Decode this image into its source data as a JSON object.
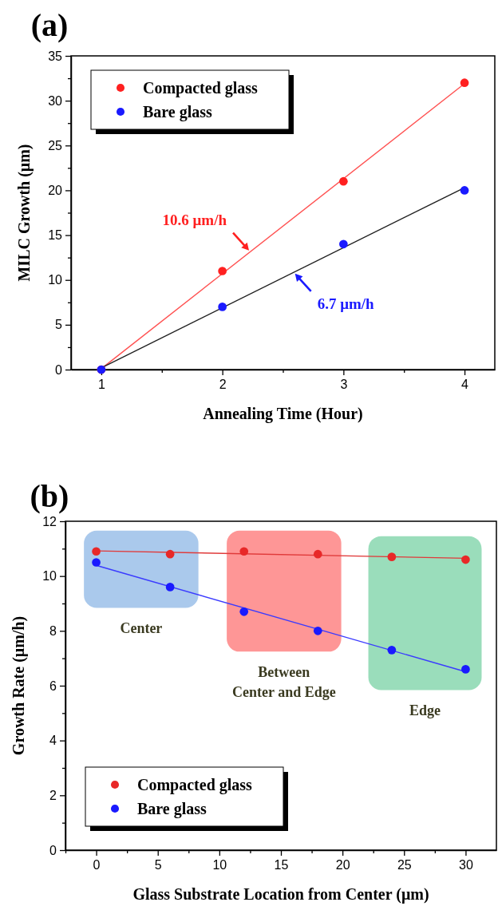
{
  "chart_data": [
    {
      "type": "scatter",
      "title": "(a)",
      "xlabel": "Annealing Time (Hour)",
      "ylabel": "MILC Growth (μm)",
      "x": [
        1,
        2,
        3,
        4
      ],
      "series": [
        {
          "name": "Compacted glass",
          "color": "#ff2020",
          "marker": "circle",
          "values": [
            0,
            11,
            21,
            32
          ]
        },
        {
          "name": "Bare glass",
          "color": "#1a1aff",
          "marker": "circle",
          "values": [
            0,
            7,
            14,
            20
          ]
        },
        {
          "type": "line",
          "color": "#ff5050",
          "marker": "none",
          "x": [
            1,
            4
          ],
          "values": [
            0.1,
            31.9
          ]
        },
        {
          "type": "line",
          "color": "#202020",
          "marker": "none",
          "x": [
            1,
            4
          ],
          "values": [
            0.2,
            20.3
          ]
        }
      ],
      "xlim": [
        0.75,
        4.25
      ],
      "xticks": [
        1,
        {
          "value": 1.5,
          "label": null
        },
        2,
        {
          "value": 2.5,
          "label": null
        },
        3,
        {
          "value": 3.5,
          "label": null
        },
        4
      ],
      "ylim": [
        0,
        35
      ],
      "yticks": [
        0,
        {
          "value": 2.5,
          "label": null
        },
        5,
        {
          "value": 7.5,
          "label": null
        },
        10,
        {
          "value": 12.5,
          "label": null
        },
        15,
        {
          "value": 17.5,
          "label": null
        },
        20,
        {
          "value": 22.5,
          "label": null
        },
        25,
        {
          "value": 27.5,
          "label": null
        },
        30,
        {
          "value": 32.5,
          "label": null
        },
        35
      ],
      "annotations": [
        {
          "text": "10.6 μm/h",
          "x": 2.22,
          "y": 13.3
        },
        {
          "text": "6.7 μm/h",
          "x": 2.6,
          "y": 10.7
        }
      ],
      "legend": "top left",
      "grid": false
    },
    {
      "type": "scatter",
      "title": "(b)",
      "xlabel": "Glass Substrate Location from Center (μm)",
      "ylabel": "Growth Rate (μm/h)",
      "x": [
        0,
        6,
        12,
        18,
        24,
        30
      ],
      "series": [
        {
          "name": "Compacted glass",
          "color": "#e82828",
          "marker": "circle",
          "values": [
            10.9,
            10.8,
            10.9,
            10.8,
            10.7,
            10.6
          ]
        },
        {
          "name": "Bare glass",
          "color": "#1a1aff",
          "marker": "circle",
          "values": [
            10.5,
            9.6,
            8.7,
            8.0,
            7.3,
            6.6
          ]
        },
        {
          "type": "line",
          "color": "#e03a3a",
          "marker": "none",
          "x": [
            0,
            30
          ],
          "values": [
            10.92,
            10.65
          ]
        },
        {
          "type": "line",
          "color": "#3a3aff",
          "marker": "none",
          "x": [
            0,
            30
          ],
          "values": [
            10.39,
            6.51
          ]
        }
      ],
      "xlim": [
        -2.5,
        32.5
      ],
      "xticks": [
        {
          "value": -2.5,
          "label": null
        },
        0,
        {
          "value": 2.5,
          "label": null
        },
        5,
        {
          "value": 7.5,
          "label": null
        },
        10,
        {
          "value": 12.5,
          "label": null
        },
        15,
        {
          "value": 17.5,
          "label": null
        },
        20,
        {
          "value": 22.5,
          "label": null
        },
        25,
        {
          "value": 27.5,
          "label": null
        },
        30
      ],
      "ylim": [
        0,
        12
      ],
      "yticks": [
        0,
        {
          "value": 1,
          "label": null
        },
        2,
        {
          "value": 3,
          "label": null
        },
        4,
        {
          "value": 5,
          "label": null
        },
        6,
        {
          "value": 7,
          "label": null
        },
        8,
        {
          "value": 9,
          "label": null
        },
        10,
        {
          "value": 11,
          "label": null
        },
        12
      ],
      "bands": [
        {
          "axis": "x",
          "from": -1,
          "to": 8.3,
          "label": "Center",
          "color": "#aac9ec"
        },
        {
          "axis": "x",
          "from": 10.6,
          "to": 19.9,
          "label": "Between\nCenter and Edge",
          "color": "#fe9696"
        },
        {
          "axis": "x",
          "from": 22.1,
          "to": 31.3,
          "label": "Edge",
          "color": "#9addbb"
        }
      ],
      "legend": "bottom left",
      "grid": false
    }
  ]
}
